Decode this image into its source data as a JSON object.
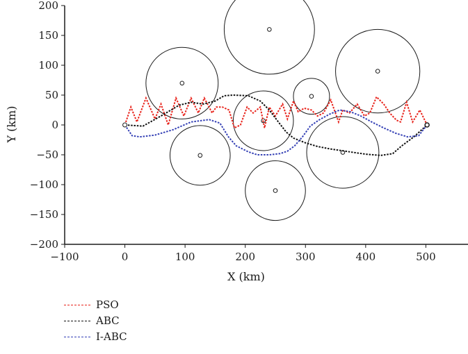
{
  "chart_data": {
    "type": "scatter",
    "title": "",
    "xlabel": "X (km)",
    "ylabel": "Y (km)",
    "xlim": [
      -100,
      570
    ],
    "ylim": [
      -200,
      200
    ],
    "xticks": [
      -100,
      0,
      100,
      200,
      300,
      400,
      500
    ],
    "yticks": [
      -200,
      -150,
      -100,
      -50,
      0,
      50,
      100,
      150,
      200
    ],
    "grid": false,
    "legend_position": "bottom-left",
    "obstacles": [
      {
        "center": [
          240,
          160
        ],
        "radius": 75
      },
      {
        "center": [
          420,
          90
        ],
        "radius": 70
      },
      {
        "center": [
          95,
          70
        ],
        "radius": 60
      },
      {
        "center": [
          230,
          7
        ],
        "radius": 50
      },
      {
        "center": [
          310,
          48
        ],
        "radius": 30
      },
      {
        "center": [
          362,
          -46
        ],
        "radius": 60
      },
      {
        "center": [
          125,
          -51
        ],
        "radius": 50
      },
      {
        "center": [
          250,
          -110
        ],
        "radius": 50
      }
    ],
    "series": [
      {
        "name": "PSO",
        "color": "#e8231b",
        "style": "dashed",
        "points": [
          [
            0,
            0
          ],
          [
            10,
            30
          ],
          [
            20,
            5
          ],
          [
            35,
            45
          ],
          [
            50,
            10
          ],
          [
            60,
            35
          ],
          [
            72,
            0
          ],
          [
            85,
            45
          ],
          [
            98,
            15
          ],
          [
            110,
            45
          ],
          [
            122,
            20
          ],
          [
            132,
            45
          ],
          [
            145,
            20
          ],
          [
            152,
            30
          ],
          [
            162,
            30
          ],
          [
            173,
            25
          ],
          [
            182,
            -5
          ],
          [
            192,
            0
          ],
          [
            203,
            30
          ],
          [
            213,
            20
          ],
          [
            225,
            30
          ],
          [
            232,
            -5
          ],
          [
            240,
            30
          ],
          [
            250,
            15
          ],
          [
            262,
            35
          ],
          [
            270,
            10
          ],
          [
            280,
            40
          ],
          [
            288,
            22
          ],
          [
            298,
            28
          ],
          [
            310,
            25
          ],
          [
            320,
            15
          ],
          [
            330,
            20
          ],
          [
            342,
            42
          ],
          [
            355,
            5
          ],
          [
            362,
            25
          ],
          [
            373,
            20
          ],
          [
            386,
            35
          ],
          [
            398,
            15
          ],
          [
            407,
            20
          ],
          [
            418,
            47
          ],
          [
            430,
            35
          ],
          [
            440,
            20
          ],
          [
            451,
            8
          ],
          [
            458,
            5
          ],
          [
            468,
            38
          ],
          [
            478,
            5
          ],
          [
            490,
            25
          ],
          [
            502,
            0
          ]
        ]
      },
      {
        "name": "ABC",
        "color": "#111111",
        "style": "dashed",
        "points": [
          [
            0,
            0
          ],
          [
            30,
            -2
          ],
          [
            60,
            15
          ],
          [
            90,
            33
          ],
          [
            110,
            38
          ],
          [
            130,
            35
          ],
          [
            150,
            40
          ],
          [
            165,
            49
          ],
          [
            180,
            50
          ],
          [
            205,
            49
          ],
          [
            225,
            40
          ],
          [
            240,
            25
          ],
          [
            255,
            5
          ],
          [
            268,
            -12
          ],
          [
            280,
            -22
          ],
          [
            300,
            -30
          ],
          [
            320,
            -36
          ],
          [
            340,
            -40
          ],
          [
            360,
            -43
          ],
          [
            380,
            -46
          ],
          [
            400,
            -49
          ],
          [
            425,
            -51
          ],
          [
            445,
            -48
          ],
          [
            460,
            -35
          ],
          [
            480,
            -20
          ],
          [
            502,
            0
          ]
        ]
      },
      {
        "name": "I-ABC",
        "color": "#3440b5",
        "style": "dashed",
        "points": [
          [
            0,
            0
          ],
          [
            12,
            -18
          ],
          [
            25,
            -20
          ],
          [
            50,
            -17
          ],
          [
            80,
            -8
          ],
          [
            110,
            5
          ],
          [
            140,
            9
          ],
          [
            158,
            3
          ],
          [
            172,
            -20
          ],
          [
            185,
            -35
          ],
          [
            205,
            -45
          ],
          [
            220,
            -50
          ],
          [
            240,
            -50
          ],
          [
            258,
            -48
          ],
          [
            270,
            -44
          ],
          [
            282,
            -35
          ],
          [
            295,
            -20
          ],
          [
            308,
            -2
          ],
          [
            322,
            8
          ],
          [
            340,
            18
          ],
          [
            357,
            25
          ],
          [
            375,
            22
          ],
          [
            392,
            15
          ],
          [
            410,
            5
          ],
          [
            430,
            -5
          ],
          [
            450,
            -14
          ],
          [
            470,
            -20
          ],
          [
            488,
            -18
          ],
          [
            502,
            0
          ]
        ]
      }
    ]
  }
}
